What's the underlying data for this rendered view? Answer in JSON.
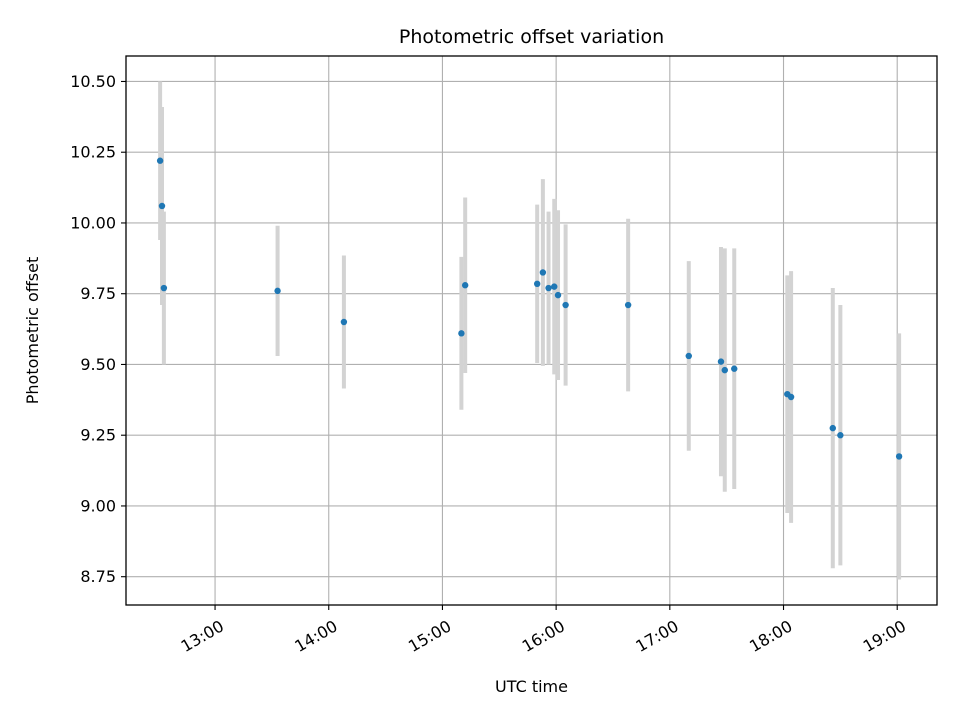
{
  "chart_data": {
    "type": "scatter",
    "title": "Photometric offset variation",
    "xlabel": "UTC time",
    "ylabel": "Photometric offset",
    "x_tick_labels": [
      "13:00",
      "14:00",
      "15:00",
      "16:00",
      "17:00",
      "18:00",
      "19:00"
    ],
    "y_tick_labels": [
      "8.75",
      "9.00",
      "9.25",
      "9.50",
      "9.75",
      "10.00",
      "10.25",
      "10.50"
    ],
    "x_ticks": [
      "13:00",
      "14:00",
      "15:00",
      "16:00",
      "17:00",
      "18:00",
      "19:00"
    ],
    "y_ticks": [
      8.75,
      9.0,
      9.25,
      9.5,
      9.75,
      10.0,
      10.25,
      10.5
    ],
    "xlim": [
      "12:13",
      "19:21"
    ],
    "ylim": [
      8.65,
      10.59
    ],
    "grid": true,
    "colors": {
      "point": "#1f77b4",
      "errorbar": "#d3d3d3",
      "grid": "#b0b0b0"
    },
    "points": [
      {
        "x": "12:31",
        "y": 10.22,
        "yerr": 0.28
      },
      {
        "x": "12:32",
        "y": 10.06,
        "yerr": 0.35
      },
      {
        "x": "12:33",
        "y": 9.77,
        "yerr": 0.27
      },
      {
        "x": "13:33",
        "y": 9.76,
        "yerr": 0.23
      },
      {
        "x": "14:08",
        "y": 9.65,
        "yerr": 0.235
      },
      {
        "x": "15:10",
        "y": 9.61,
        "yerr": 0.27
      },
      {
        "x": "15:12",
        "y": 9.78,
        "yerr": 0.31
      },
      {
        "x": "15:50",
        "y": 9.785,
        "yerr": 0.28
      },
      {
        "x": "15:53",
        "y": 9.825,
        "yerr": 0.33
      },
      {
        "x": "15:56",
        "y": 9.77,
        "yerr": 0.27
      },
      {
        "x": "15:59",
        "y": 9.775,
        "yerr": 0.31
      },
      {
        "x": "16:01",
        "y": 9.745,
        "yerr": 0.3
      },
      {
        "x": "16:05",
        "y": 9.71,
        "yerr": 0.285
      },
      {
        "x": "16:38",
        "y": 9.71,
        "yerr": 0.305
      },
      {
        "x": "17:10",
        "y": 9.53,
        "yerr": 0.335
      },
      {
        "x": "17:27",
        "y": 9.51,
        "yerr": 0.405
      },
      {
        "x": "17:29",
        "y": 9.48,
        "yerr": 0.43
      },
      {
        "x": "17:34",
        "y": 9.485,
        "yerr": 0.425
      },
      {
        "x": "18:02",
        "y": 9.395,
        "yerr": 0.42
      },
      {
        "x": "18:04",
        "y": 9.385,
        "yerr": 0.445
      },
      {
        "x": "18:26",
        "y": 9.275,
        "yerr": 0.495
      },
      {
        "x": "18:30",
        "y": 9.25,
        "yerr": 0.46
      },
      {
        "x": "19:01",
        "y": 9.175,
        "yerr": 0.435
      }
    ]
  }
}
